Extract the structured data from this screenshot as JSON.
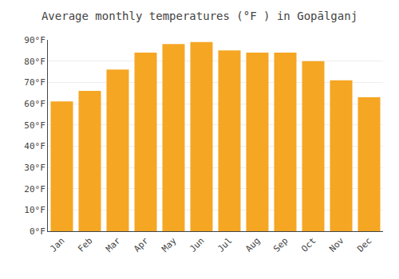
{
  "chart_data": {
    "type": "bar",
    "title": "Average monthly temperatures (°F ) in Gopālganj",
    "categories": [
      "Jan",
      "Feb",
      "Mar",
      "Apr",
      "May",
      "Jun",
      "Jul",
      "Aug",
      "Sep",
      "Oct",
      "Nov",
      "Dec"
    ],
    "values": [
      61,
      66,
      76,
      84,
      88,
      89,
      85,
      84,
      84,
      80,
      71,
      63
    ],
    "color": "#F5A623",
    "ylim": [
      0,
      90
    ],
    "yticks": [
      {
        "value": 0,
        "label": "0°F"
      },
      {
        "value": 10,
        "label": "10°F"
      },
      {
        "value": 20,
        "label": "20°F"
      },
      {
        "value": 30,
        "label": "30°F"
      },
      {
        "value": 40,
        "label": "40°F"
      },
      {
        "value": 50,
        "label": "50°F"
      },
      {
        "value": 60,
        "label": "60°F"
      },
      {
        "value": 70,
        "label": "70°F"
      },
      {
        "value": 80,
        "label": "80°F"
      },
      {
        "value": 90,
        "label": "90°F"
      }
    ],
    "grid": true
  }
}
